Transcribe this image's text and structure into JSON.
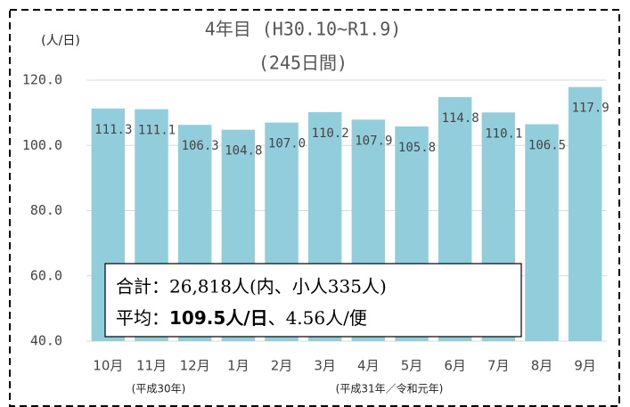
{
  "chart_data": {
    "type": "bar",
    "title": "4年目 (H30.10~R1.9)",
    "subtitle": "(245日間)",
    "y_unit": "(人/日)",
    "categories": [
      "10月",
      "11月",
      "12月",
      "1月",
      "2月",
      "3月",
      "4月",
      "5月",
      "6月",
      "7月",
      "8月",
      "9月"
    ],
    "category_groups": [
      "(平成30年)",
      "(平成31年／令和元年)"
    ],
    "values": [
      111.3,
      111.1,
      106.3,
      104.8,
      107.0,
      110.2,
      107.9,
      105.8,
      114.8,
      110.1,
      106.5,
      117.9
    ],
    "value_labels": [
      "111.3",
      "111.1",
      "106.3",
      "104.8",
      "107.0",
      "110.2",
      "107.9",
      "105.8",
      "114.8",
      "110.1",
      "106.5",
      "117.9"
    ],
    "color": "#92cddc",
    "ylim": [
      40,
      120
    ],
    "yticks": [
      {
        "value": 40,
        "label": "40.0"
      },
      {
        "value": 60,
        "label": "60.0"
      },
      {
        "value": 80,
        "label": "80.0"
      },
      {
        "value": 100,
        "label": "100.0"
      },
      {
        "value": 120,
        "label": "120.0"
      }
    ],
    "grid": true,
    "annotation": {
      "line1": "合計：26,818人(内、小人335人)",
      "line2_a": "平均：",
      "line2_b": "109.5人/日",
      "line2_c": "、4.56人/便"
    }
  }
}
